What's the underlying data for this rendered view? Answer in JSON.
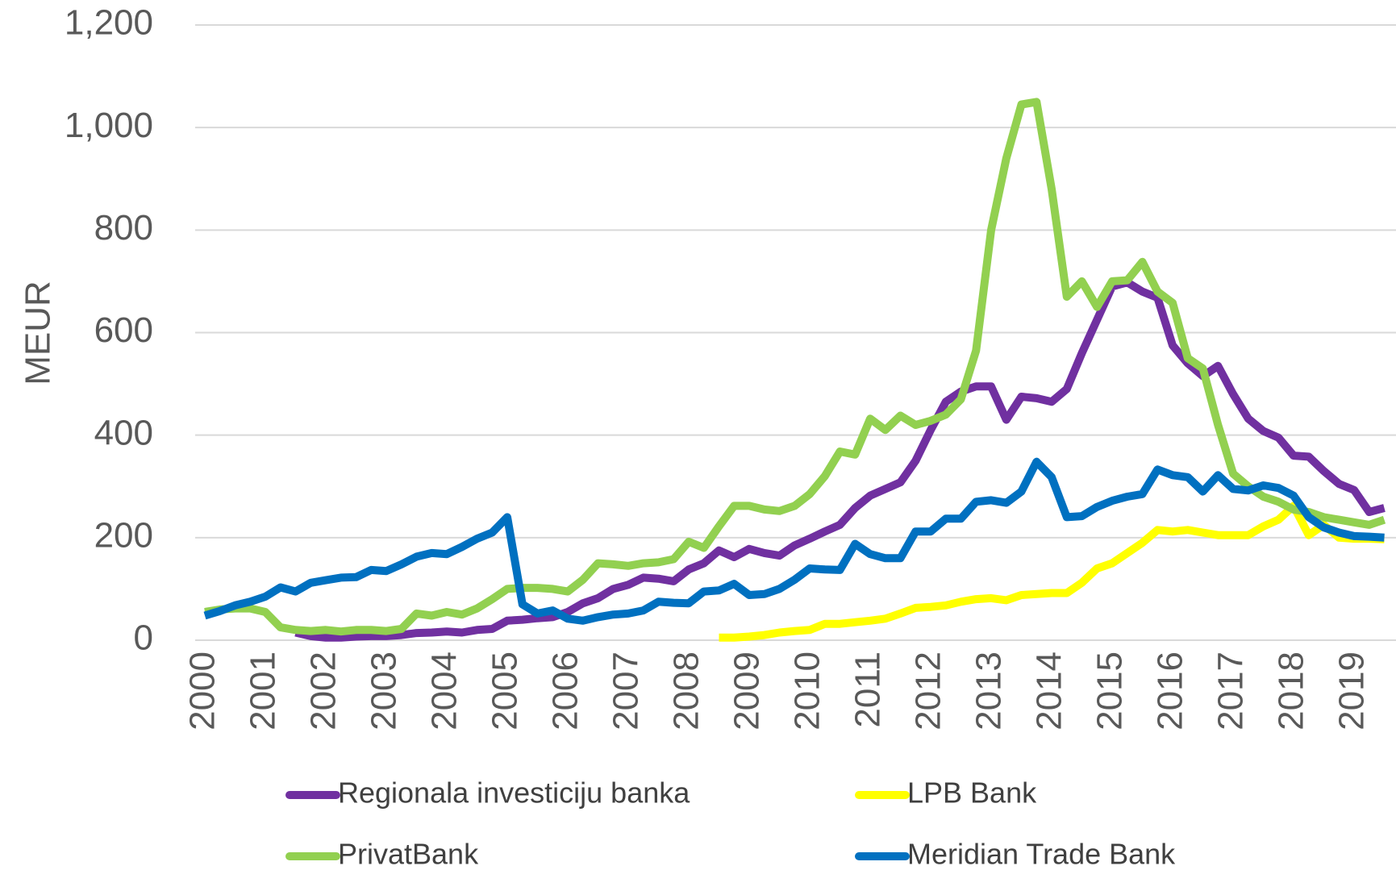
{
  "chart_data": {
    "type": "line",
    "y_label": "MEUR",
    "categories": [
      "2000",
      null,
      null,
      null,
      "2001",
      null,
      null,
      null,
      "2002",
      null,
      null,
      null,
      "2003",
      null,
      null,
      null,
      "2004",
      null,
      null,
      null,
      "2005",
      null,
      null,
      null,
      "2006",
      null,
      null,
      null,
      "2007",
      null,
      null,
      null,
      "2008",
      null,
      null,
      null,
      "2009",
      null,
      null,
      null,
      "2010",
      null,
      null,
      null,
      "2011",
      null,
      null,
      null,
      "2012",
      null,
      null,
      null,
      "2013",
      null,
      null,
      null,
      "2014",
      null,
      null,
      null,
      "2015",
      null,
      null,
      null,
      "2016",
      null,
      null,
      null,
      "2017",
      null,
      null,
      null,
      "2018",
      null,
      null,
      null,
      "2019",
      null,
      null
    ],
    "series": [
      {
        "name": "Regionala investiciju banka",
        "color": "#7030a0",
        "values": [
          null,
          null,
          null,
          null,
          null,
          null,
          15,
          8,
          5,
          5,
          7,
          8,
          8,
          10,
          14,
          15,
          17,
          15,
          20,
          22,
          38,
          40,
          43,
          45,
          55,
          72,
          82,
          100,
          108,
          122,
          120,
          115,
          138,
          150,
          175,
          162,
          178,
          170,
          165,
          185,
          198,
          212,
          225,
          258,
          282,
          295,
          308,
          350,
          410,
          465,
          485,
          495,
          495,
          430,
          475,
          472,
          465,
          490,
          560,
          625,
          690,
          698,
          680,
          668,
          575,
          540,
          515,
          535,
          480,
          432,
          408,
          395,
          360,
          358,
          330,
          305,
          293,
          250,
          258
        ]
      },
      {
        "name": "LPB Bank",
        "color": "#ffff00",
        "values": [
          null,
          null,
          null,
          null,
          null,
          null,
          null,
          null,
          null,
          null,
          null,
          null,
          null,
          null,
          null,
          null,
          null,
          null,
          null,
          null,
          null,
          null,
          null,
          null,
          null,
          null,
          null,
          null,
          null,
          null,
          null,
          null,
          null,
          null,
          5,
          5,
          7,
          10,
          15,
          18,
          20,
          32,
          32,
          35,
          38,
          42,
          52,
          63,
          65,
          68,
          75,
          80,
          82,
          78,
          88,
          90,
          92,
          92,
          112,
          140,
          150,
          170,
          190,
          215,
          212,
          215,
          210,
          205,
          205,
          205,
          222,
          235,
          262,
          205,
          225,
          200,
          198,
          198,
          197
        ]
      },
      {
        "name": "PrivatBank",
        "color": "#92d050",
        "values": [
          55,
          60,
          62,
          62,
          55,
          25,
          20,
          18,
          20,
          17,
          20,
          20,
          18,
          22,
          52,
          48,
          55,
          50,
          62,
          80,
          100,
          102,
          102,
          100,
          95,
          118,
          150,
          148,
          145,
          150,
          152,
          158,
          192,
          180,
          222,
          262,
          262,
          255,
          252,
          262,
          285,
          320,
          368,
          362,
          432,
          410,
          438,
          420,
          428,
          440,
          470,
          565,
          800,
          940,
          1045,
          1050,
          880,
          670,
          700,
          650,
          700,
          702,
          738,
          680,
          658,
          550,
          530,
          420,
          325,
          300,
          280,
          270,
          255,
          250,
          240,
          235,
          230,
          225,
          235
        ]
      },
      {
        "name": "Meridian Trade Bank",
        "color": "#0070c0",
        "values": [
          48,
          57,
          68,
          75,
          85,
          103,
          95,
          112,
          117,
          122,
          123,
          137,
          135,
          148,
          163,
          170,
          168,
          182,
          198,
          210,
          240,
          70,
          52,
          58,
          42,
          38,
          45,
          50,
          52,
          58,
          75,
          73,
          72,
          95,
          97,
          110,
          88,
          90,
          100,
          118,
          140,
          138,
          137,
          188,
          168,
          160,
          160,
          212,
          212,
          237,
          237,
          270,
          273,
          268,
          290,
          348,
          318,
          240,
          242,
          260,
          272,
          280,
          285,
          333,
          322,
          318,
          290,
          322,
          295,
          292,
          302,
          297,
          282,
          240,
          220,
          210,
          203,
          202,
          200
        ]
      }
    ],
    "ylim": [
      0,
      1200
    ],
    "yticks": [
      0,
      200,
      400,
      600,
      800,
      {
        "value": 1000,
        "label": "1,000"
      },
      {
        "value": 1200,
        "label": "1,200"
      }
    ],
    "grid": true,
    "legend": "bottom"
  }
}
